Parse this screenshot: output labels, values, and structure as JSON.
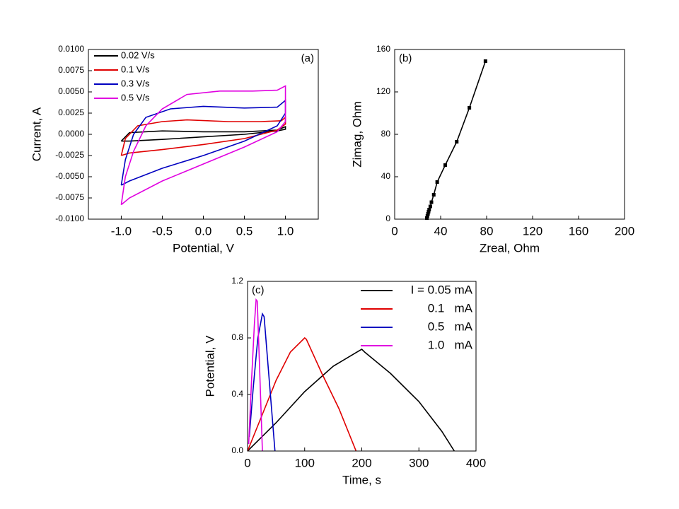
{
  "chart_data": [
    {
      "type": "line",
      "xlabel": "Potential, V",
      "ylabel": "Current, A",
      "annotation": "(a)",
      "xlim": [
        -1.4,
        1.4
      ],
      "xticks": [
        {
          "value": -1,
          "label": "-1.0"
        },
        {
          "value": -0.5,
          "label": "-0.5"
        },
        {
          "value": 0,
          "label": "0.0"
        },
        {
          "value": 0.5,
          "label": "0.5"
        },
        {
          "value": 1,
          "label": "1.0"
        }
      ],
      "ylim": [
        -0.01,
        0.01
      ],
      "yticks": [
        {
          "value": -0.01,
          "label": "-0.0100"
        },
        {
          "value": -0.0075,
          "label": "-0.0075"
        },
        {
          "value": -0.005,
          "label": "-0.0050"
        },
        {
          "value": -0.0025,
          "label": "-0.0025"
        },
        {
          "value": 0,
          "label": "0.0000"
        },
        {
          "value": 0.0025,
          "label": "0.0025"
        },
        {
          "value": 0.005,
          "label": "0.0050"
        },
        {
          "value": 0.0075,
          "label": "0.0075"
        },
        {
          "value": 0.01,
          "label": "0.0100"
        }
      ],
      "legend": "upper left",
      "series": [
        {
          "name": "0.02 V/s",
          "color": "#000000",
          "x": [
            -1,
            -0.9,
            -0.5,
            0,
            0.5,
            0.9,
            1.0,
            1.0,
            0.9,
            0.5,
            0,
            -0.5,
            -0.9,
            -1
          ],
          "values": [
            -0.0008,
            0.0002,
            0.0004,
            0.0003,
            0.0003,
            0.0005,
            0.0009,
            0.0006,
            0.0004,
            0.0,
            -0.0003,
            -0.0006,
            -0.0008,
            -0.0008
          ]
        },
        {
          "name": "0.1 V/s",
          "color": "#e00000",
          "x": [
            -1,
            -0.95,
            -0.8,
            -0.5,
            -0.2,
            0.3,
            0.7,
            0.95,
            1.0,
            1.0,
            0.9,
            0.5,
            0,
            -0.5,
            -0.9,
            -1
          ],
          "values": [
            -0.0025,
            -0.0005,
            0.001,
            0.0015,
            0.0017,
            0.0015,
            0.0015,
            0.0016,
            0.002,
            0.0012,
            0.0005,
            -0.0005,
            -0.0012,
            -0.0018,
            -0.0022,
            -0.0025
          ]
        },
        {
          "name": "0.3 V/s",
          "color": "#0000c0",
          "x": [
            -1,
            -0.95,
            -0.85,
            -0.7,
            -0.4,
            0,
            0.5,
            0.9,
            1.0,
            1.0,
            0.9,
            0.5,
            0,
            -0.5,
            -0.9,
            -1
          ],
          "values": [
            -0.006,
            -0.003,
            0,
            0.002,
            0.003,
            0.0033,
            0.0031,
            0.0032,
            0.004,
            0.0025,
            0.001,
            -0.0008,
            -0.0025,
            -0.004,
            -0.0055,
            -0.006
          ]
        },
        {
          "name": "0.5 V/s",
          "color": "#e000e0",
          "x": [
            -1,
            -0.95,
            -0.85,
            -0.7,
            -0.5,
            -0.2,
            0.2,
            0.6,
            0.9,
            1.0,
            1.0,
            0.9,
            0.5,
            0,
            -0.5,
            -0.9,
            -1
          ],
          "values": [
            -0.0083,
            -0.005,
            -0.002,
            0.001,
            0.003,
            0.0047,
            0.0051,
            0.0051,
            0.0052,
            0.0057,
            0.0015,
            0.0003,
            -0.0015,
            -0.0035,
            -0.0055,
            -0.0075,
            -0.0083
          ]
        }
      ]
    },
    {
      "type": "line",
      "xlabel": "Zreal, Ohm",
      "ylabel": "Zimag, Ohm",
      "annotation": "(b)",
      "xlim": [
        0,
        200
      ],
      "xticks": [
        0,
        40,
        80,
        120,
        160,
        200
      ],
      "ylim": [
        0,
        160
      ],
      "yticks": [
        0,
        40,
        80,
        120,
        160
      ],
      "series": [
        {
          "color": "#000000",
          "marker": "square",
          "x": [
            28,
            28.5,
            29,
            29.5,
            30,
            31,
            32,
            34,
            37,
            44,
            54,
            65,
            79
          ],
          "values": [
            1,
            3,
            5,
            7,
            9,
            12,
            16,
            23,
            35,
            51,
            73,
            105,
            149
          ]
        }
      ]
    },
    {
      "type": "line",
      "xlabel": "Time, s",
      "ylabel": "Potential, V",
      "annotation": "(c)",
      "xlim": [
        0,
        400
      ],
      "xticks": [
        0,
        100,
        200,
        300,
        400
      ],
      "ylim": [
        0,
        1.2
      ],
      "yticks": [
        {
          "value": 0,
          "label": "0.0"
        },
        {
          "value": 0.4,
          "label": "0.4"
        },
        {
          "value": 0.8,
          "label": "0.8"
        },
        {
          "value": 1.2,
          "label": "1.2"
        }
      ],
      "legend": "upper right",
      "series": [
        {
          "name": "I = 0.05 mA",
          "color": "#000000",
          "x": [
            0,
            50,
            100,
            150,
            200,
            205,
            250,
            300,
            340,
            362
          ],
          "values": [
            0,
            0.2,
            0.42,
            0.6,
            0.72,
            0.7,
            0.55,
            0.35,
            0.14,
            0
          ]
        },
        {
          "name": "0.1   mA",
          "color": "#e00000",
          "x": [
            0,
            25,
            50,
            75,
            100,
            103,
            130,
            160,
            190
          ],
          "values": [
            0,
            0.25,
            0.5,
            0.7,
            0.8,
            0.79,
            0.55,
            0.3,
            0
          ]
        },
        {
          "name": "0.5   mA",
          "color": "#0000c0",
          "x": [
            3,
            10,
            18,
            26,
            29,
            38,
            48
          ],
          "values": [
            0.1,
            0.45,
            0.8,
            0.97,
            0.95,
            0.5,
            0
          ]
        },
        {
          "name": "1.0   mA",
          "color": "#e000e0",
          "x": [
            2,
            7,
            12,
            15,
            17,
            21,
            26
          ],
          "values": [
            0.05,
            0.5,
            0.9,
            1.07,
            1.06,
            0.6,
            0
          ]
        }
      ]
    }
  ]
}
